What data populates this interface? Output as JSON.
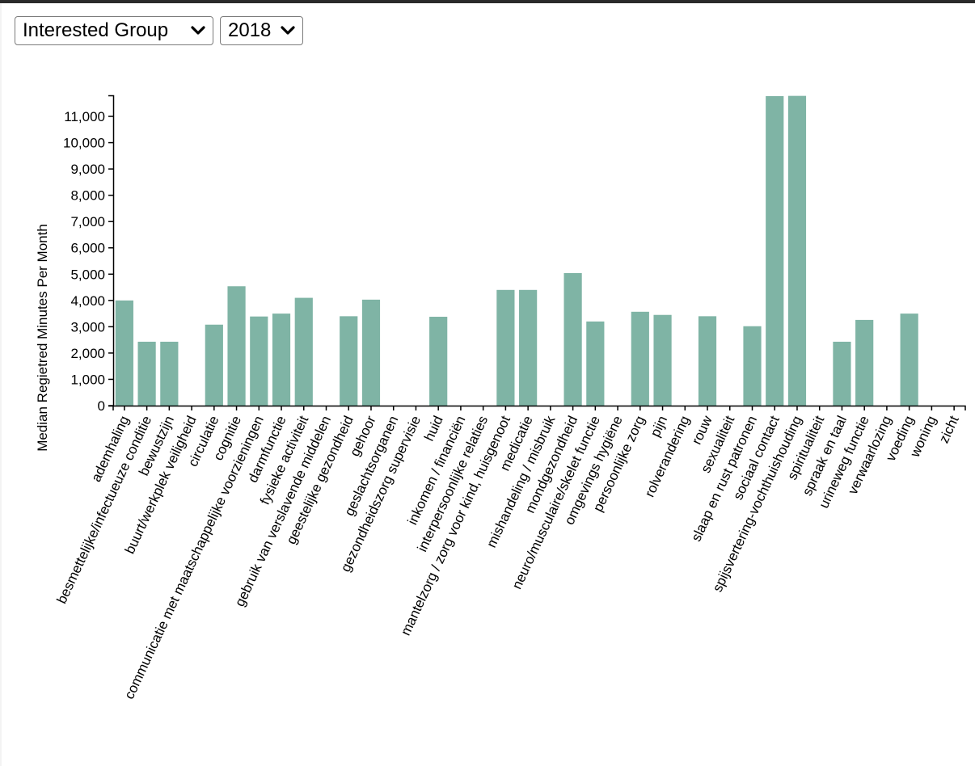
{
  "controls": {
    "group_select": {
      "value": "Interested Group"
    },
    "year_select": {
      "value": "2018"
    }
  },
  "colors": {
    "bar": "#7fb4a5",
    "axis": "#000000"
  },
  "chart_data": {
    "type": "bar",
    "title": "",
    "xlabel": "",
    "ylabel": "Median Regietred Minutes Per Month",
    "ylim": [
      0,
      11800
    ],
    "yticks": [
      0,
      1000,
      2000,
      3000,
      4000,
      5000,
      6000,
      7000,
      8000,
      9000,
      10000,
      11000
    ],
    "grid": false,
    "categories": [
      "ademhaling",
      "besmettelijke/infectueuze conditie",
      "bewustzijn",
      "buurt/werkplek veiligheid",
      "circulatie",
      "cognitie",
      "communicatie met maatschappelijke voorzieningen",
      "darmfunctie",
      "fysieke activiteit",
      "gebruik van verslavende middelen",
      "geestelijke gezondheid",
      "gehoor",
      "geslachtsorganen",
      "gezondheidszorg supervisie",
      "huid",
      "inkomen / financiën",
      "interpersoonlijke relaties",
      "mantelzorg / zorg voor kind, huisgenoot",
      "medicatie",
      "mishandeling / misbruik",
      "mondgezondheid",
      "neuro/musculaire/skelet functie",
      "omgevings hygiëne",
      "persoonlijke zorg",
      "pijn",
      "rolverandering",
      "rouw",
      "sexualiteit",
      "slaap en rust patronen",
      "sociaal contact",
      "spijsvertering-vochthuishouding",
      "spiritualiteit",
      "spraak en taal",
      "urineweg functie",
      "verwaarlozing",
      "voeding",
      "woning",
      "zicht"
    ],
    "values": [
      4000,
      2430,
      2430,
      0,
      3080,
      4540,
      3390,
      3500,
      4100,
      0,
      3400,
      4030,
      0,
      0,
      3380,
      0,
      0,
      4400,
      4400,
      0,
      5040,
      3200,
      0,
      3570,
      3450,
      0,
      3400,
      0,
      3020,
      11770,
      11780,
      0,
      2430,
      3260,
      0,
      3500,
      0,
      0
    ]
  }
}
